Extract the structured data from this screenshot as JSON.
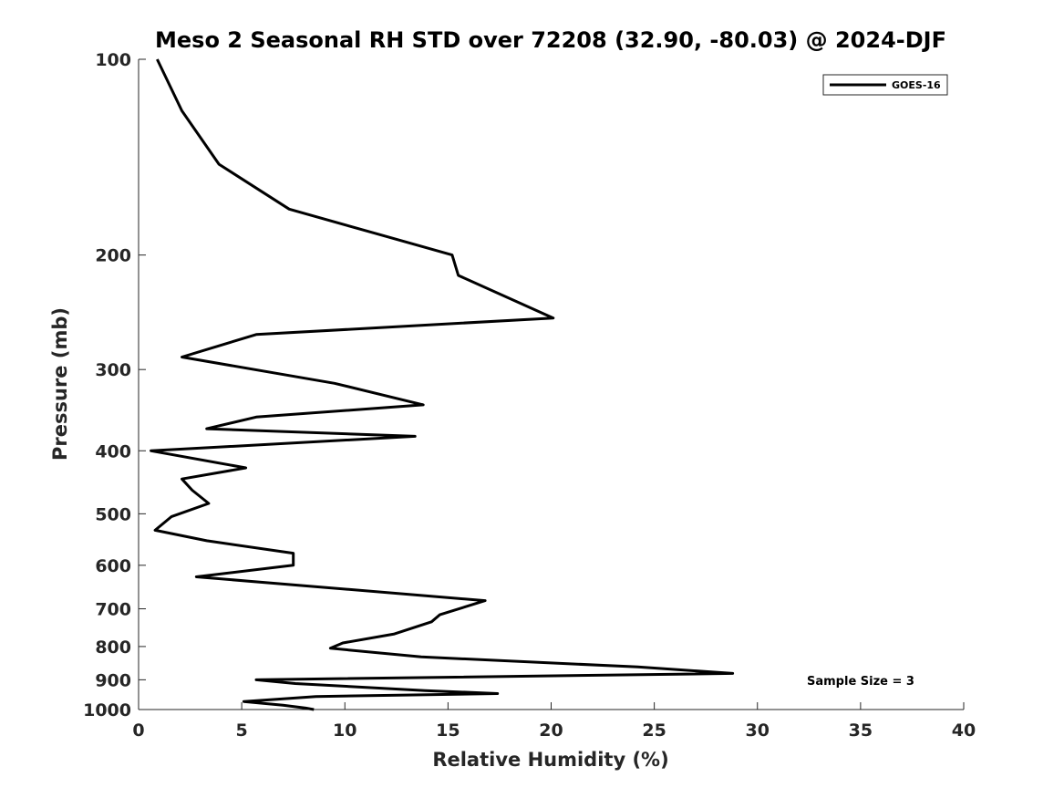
{
  "chart_data": {
    "type": "line",
    "title": "Meso 2 Seasonal RH STD over 72208 (32.90, -80.03) @ 2024-DJF",
    "xlabel": "Relative Humidity (%)",
    "ylabel": "Pressure (mb)",
    "xlim": [
      0,
      40
    ],
    "ylim": [
      100,
      1000
    ],
    "yscale": "log",
    "xticks": [
      0,
      5,
      10,
      15,
      20,
      25,
      30,
      35,
      40
    ],
    "xtick_labels": [
      "0",
      "5",
      "10",
      "15",
      "20",
      "25",
      "30",
      "35",
      "40"
    ],
    "yticks": [
      100,
      200,
      300,
      400,
      500,
      600,
      700,
      800,
      900,
      1000
    ],
    "ytick_labels": [
      "100",
      "200",
      "300",
      "400",
      "500",
      "600",
      "700",
      "800",
      "900",
      "1000"
    ],
    "grid": false,
    "legend_position": "top-right",
    "annotation": "Sample Size = 3",
    "series": [
      {
        "name": "GOES-16",
        "color": "#000000",
        "x": [
          0.9,
          2.1,
          3.9,
          7.3,
          15.2,
          15.5,
          20.1,
          5.7,
          2.1,
          9.5,
          13.8,
          5.7,
          3.3,
          13.4,
          0.6,
          5.2,
          2.1,
          2.6,
          3.4,
          1.6,
          0.8,
          3.3,
          7.5,
          7.5,
          2.8,
          16.8,
          14.6,
          14.2,
          12.4,
          9.9,
          9.3,
          13.7,
          24.2,
          28.8,
          5.7,
          7.6,
          13.9,
          17.4,
          8.6,
          5.1,
          7.0,
          8.1,
          8.5
        ],
        "y": [
          100,
          120,
          145,
          170,
          200,
          215,
          250,
          265,
          287,
          315,
          340,
          355,
          370,
          380,
          400,
          425,
          442,
          460,
          482,
          505,
          530,
          550,
          575,
          600,
          625,
          680,
          715,
          733,
          765,
          790,
          805,
          830,
          860,
          880,
          900,
          912,
          935,
          945,
          955,
          972,
          985,
          995,
          1000
        ]
      }
    ]
  }
}
